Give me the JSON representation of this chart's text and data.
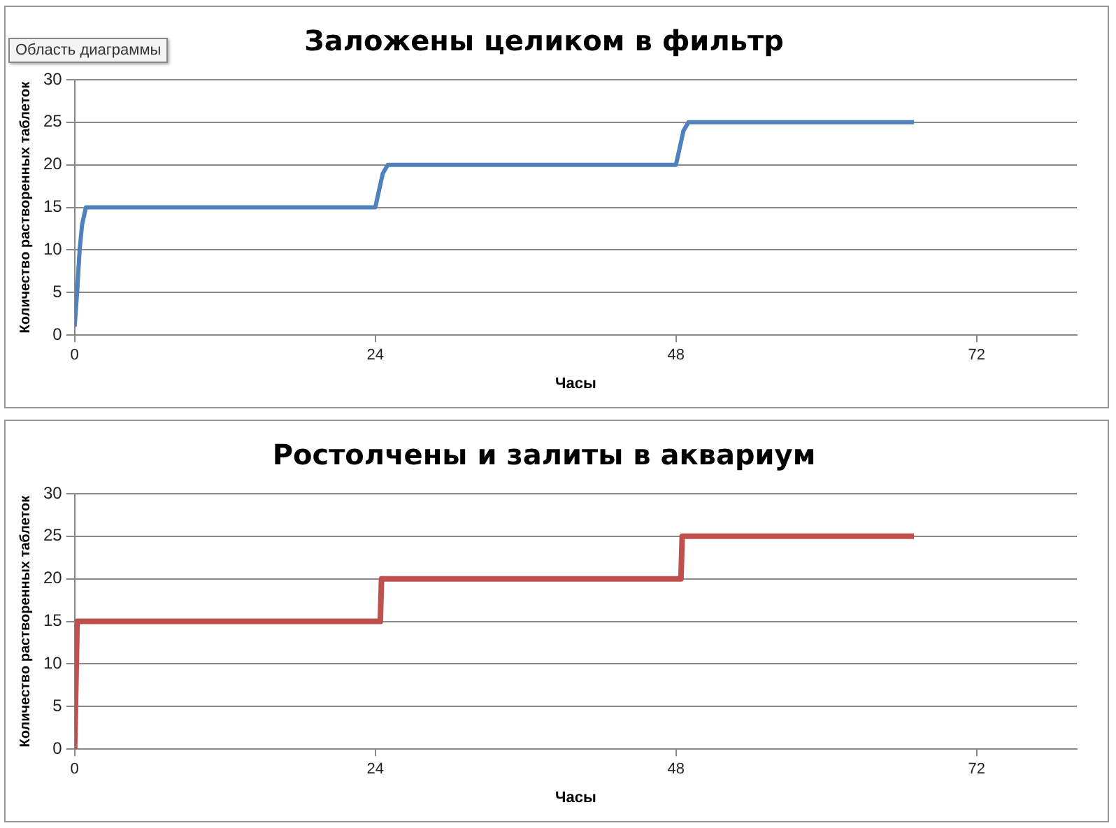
{
  "chart_data": [
    {
      "type": "line",
      "title": "Заложены целиком в фильтр",
      "xlabel": "Часы",
      "ylabel": "Количество растворенных таблеток",
      "annotations": [
        "Область диаграммы"
      ],
      "series": [
        {
          "color": "#4f81bd",
          "x": [
            0,
            0.2,
            0.4,
            0.6,
            0.9,
            24,
            24.3,
            24.6,
            25,
            48,
            48.3,
            48.6,
            49,
            67
          ],
          "values": [
            1,
            5,
            10,
            13,
            15,
            15,
            17,
            19,
            20,
            20,
            22,
            24,
            25,
            25
          ]
        }
      ],
      "xlim": [
        0,
        80
      ],
      "xticks": [
        0,
        24,
        48,
        72
      ],
      "ylim": [
        0,
        30
      ],
      "yticks": [
        0,
        5,
        10,
        15,
        20,
        25,
        30
      ],
      "grid": "y",
      "legend": false
    },
    {
      "type": "line",
      "title": "Ростолчены и залиты в аквариум",
      "xlabel": "Часы",
      "ylabel": "Количество растворенных таблеток",
      "series": [
        {
          "color": "#c0504d",
          "x": [
            0,
            0.2,
            24.4,
            24.5,
            48.4,
            48.5,
            67
          ],
          "values": [
            0,
            15,
            15,
            20,
            20,
            25,
            25
          ]
        }
      ],
      "xlim": [
        0,
        80
      ],
      "xticks": [
        0,
        24,
        48,
        72
      ],
      "ylim": [
        0,
        30
      ],
      "yticks": [
        0,
        5,
        10,
        15,
        20,
        25,
        30
      ],
      "grid": "y",
      "legend": false
    }
  ]
}
